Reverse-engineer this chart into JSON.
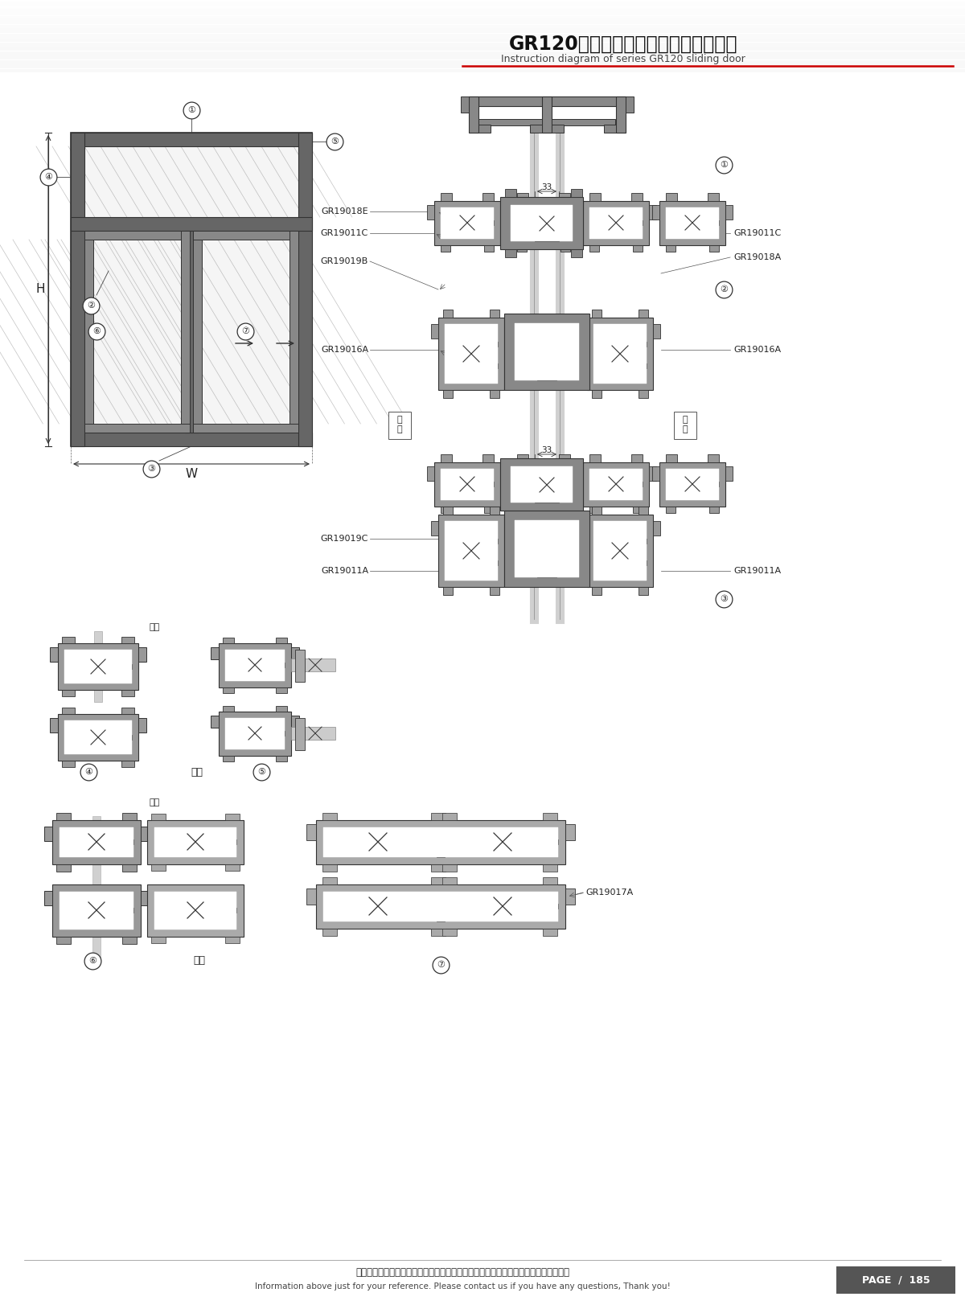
{
  "title_cn": "GR120系列隔热（重型）推拉门结构图",
  "title_en": "Instruction diagram of series GR120 sliding door",
  "footer_cn": "图中所示型材截面、装配、编号、尺寸及重量仅供参考。如有疑问，请向本公司查询。",
  "footer_en": "Information above just for your reference. Please contact us if you have any questions, Thank you!",
  "page": "PAGE  /  185",
  "bg_color": "#ffffff",
  "line_color": "#333333",
  "profile_color": "#aaaaaa",
  "profile_dark": "#555555",
  "header_red": "#cc0000",
  "stripe_color": "#bbbbbb"
}
